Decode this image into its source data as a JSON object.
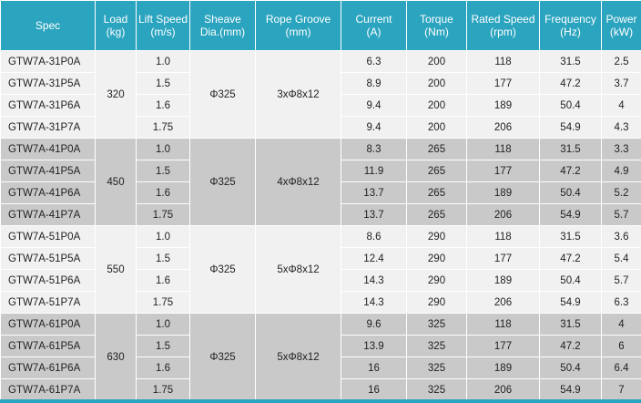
{
  "headers": [
    {
      "line1": "Spec",
      "line2": ""
    },
    {
      "line1": "Load",
      "line2": "(kg)"
    },
    {
      "line1": "Lift Speed",
      "line2": "(m/s)"
    },
    {
      "line1": "Sheave",
      "line2": "Dia.(mm)"
    },
    {
      "line1": "Rope Groove",
      "line2": "(mm)"
    },
    {
      "line1": "Current",
      "line2": "(A)"
    },
    {
      "line1": "Torque",
      "line2": "(Nm)"
    },
    {
      "line1": "Rated Speed",
      "line2": "(rpm)"
    },
    {
      "line1": "Frequency",
      "line2": "(Hz)"
    },
    {
      "line1": "Power",
      "line2": "(kW)"
    }
  ],
  "groups": [
    {
      "shade": "light",
      "load": "320",
      "sheave": "Φ325",
      "groove": "3xΦ8x12",
      "rows": [
        {
          "spec": "GTW7A-31P0A",
          "speed": "1.0",
          "current": "6.3",
          "torque": "200",
          "rpm": "118",
          "freq": "31.5",
          "power": "2.5"
        },
        {
          "spec": "GTW7A-31P5A",
          "speed": "1.5",
          "current": "8.9",
          "torque": "200",
          "rpm": "177",
          "freq": "47.2",
          "power": "3.7"
        },
        {
          "spec": "GTW7A-31P6A",
          "speed": "1.6",
          "current": "9.4",
          "torque": "200",
          "rpm": "189",
          "freq": "50.4",
          "power": "4"
        },
        {
          "spec": "GTW7A-31P7A",
          "speed": "1.75",
          "current": "9.4",
          "torque": "200",
          "rpm": "206",
          "freq": "54.9",
          "power": "4.3"
        }
      ]
    },
    {
      "shade": "dark",
      "load": "450",
      "sheave": "Φ325",
      "groove": "4xΦ8x12",
      "rows": [
        {
          "spec": "GTW7A-41P0A",
          "speed": "1.0",
          "current": "8.3",
          "torque": "265",
          "rpm": "118",
          "freq": "31.5",
          "power": "3.3"
        },
        {
          "spec": "GTW7A-41P5A",
          "speed": "1.5",
          "current": "11.9",
          "torque": "265",
          "rpm": "177",
          "freq": "47.2",
          "power": "4.9"
        },
        {
          "spec": "GTW7A-41P6A",
          "speed": "1.6",
          "current": "13.7",
          "torque": "265",
          "rpm": "189",
          "freq": "50.4",
          "power": "5.2"
        },
        {
          "spec": "GTW7A-41P7A",
          "speed": "1.75",
          "current": "13.7",
          "torque": "265",
          "rpm": "206",
          "freq": "54.9",
          "power": "5.7"
        }
      ]
    },
    {
      "shade": "light",
      "load": "550",
      "sheave": "Φ325",
      "groove": "5xΦ8x12",
      "rows": [
        {
          "spec": "GTW7A-51P0A",
          "speed": "1.0",
          "current": "8.6",
          "torque": "290",
          "rpm": "118",
          "freq": "31.5",
          "power": "3.6"
        },
        {
          "spec": "GTW7A-51P5A",
          "speed": "1.5",
          "current": "12.4",
          "torque": "290",
          "rpm": "177",
          "freq": "47.2",
          "power": "5.4"
        },
        {
          "spec": "GTW7A-51P6A",
          "speed": "1.6",
          "current": "14.3",
          "torque": "290",
          "rpm": "189",
          "freq": "50.4",
          "power": "5.7"
        },
        {
          "spec": "GTW7A-51P7A",
          "speed": "1.75",
          "current": "14.3",
          "torque": "290",
          "rpm": "206",
          "freq": "54.9",
          "power": "6.3"
        }
      ]
    },
    {
      "shade": "dark",
      "load": "630",
      "sheave": "Φ325",
      "groove": "5xΦ8x12",
      "rows": [
        {
          "spec": "GTW7A-61P0A",
          "speed": "1.0",
          "current": "9.6",
          "torque": "325",
          "rpm": "118",
          "freq": "31.5",
          "power": "4"
        },
        {
          "spec": "GTW7A-61P5A",
          "speed": "1.5",
          "current": "13.9",
          "torque": "325",
          "rpm": "177",
          "freq": "47.2",
          "power": "6"
        },
        {
          "spec": "GTW7A-61P6A",
          "speed": "1.6",
          "current": "16",
          "torque": "325",
          "rpm": "189",
          "freq": "50.4",
          "power": "6.4"
        },
        {
          "spec": "GTW7A-61P7A",
          "speed": "1.75",
          "current": "16",
          "torque": "325",
          "rpm": "206",
          "freq": "54.9",
          "power": "7"
        }
      ]
    }
  ]
}
